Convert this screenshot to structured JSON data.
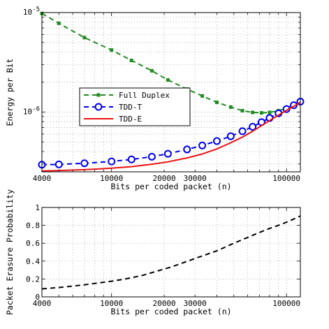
{
  "chart_data": [
    {
      "type": "line",
      "xscale": "log",
      "yscale": "log",
      "xlim": [
        4000,
        120000
      ],
      "ylim": [
        2.5e-07,
        1e-05
      ],
      "xlabel": "Bits per coded packet (n)",
      "ylabel": "Energy per Bit",
      "xtick_labels": [
        "4000",
        "10000",
        "20000",
        "30000",
        "100000"
      ],
      "xtick_values": [
        4000,
        10000,
        20000,
        30000,
        100000
      ],
      "ytick_labels": [
        {
          "value": 1e-05,
          "base": "10",
          "exp": "-5"
        },
        {
          "value": 1e-06,
          "base": "10",
          "exp": "-6"
        }
      ],
      "grid": true,
      "legend_position": "center-left",
      "series": [
        {
          "name": "Full Duplex",
          "color": "#228B22",
          "style": "dashed",
          "marker": "square",
          "x": [
            4000,
            5000,
            7000,
            10000,
            13000,
            17000,
            21000,
            27000,
            33000,
            40000,
            48000,
            56000,
            64000,
            72000,
            80000,
            90000,
            100000,
            110000,
            120000
          ],
          "y": [
            9.8e-06,
            7.8e-06,
            5.6e-06,
            4.2e-06,
            3.3e-06,
            2.6e-06,
            2.1e-06,
            1.7e-06,
            1.45e-06,
            1.25e-06,
            1.12e-06,
            1.03e-06,
            9.9e-07,
            9.8e-07,
            9.9e-07,
            1.03e-06,
            1.09e-06,
            1.17e-06,
            1.28e-06
          ]
        },
        {
          "name": "TDD-T",
          "color": "#0000EE",
          "style": "dashed",
          "marker": "circle",
          "x": [
            4000,
            5000,
            7000,
            10000,
            13000,
            17000,
            21000,
            27000,
            33000,
            40000,
            48000,
            56000,
            64000,
            72000,
            80000,
            90000,
            100000,
            110000,
            120000
          ],
          "y": [
            2.95e-07,
            2.97e-07,
            3.05e-07,
            3.18e-07,
            3.33e-07,
            3.55e-07,
            3.8e-07,
            4.2e-07,
            4.6e-07,
            5.1e-07,
            5.7e-07,
            6.4e-07,
            7.1e-07,
            7.9e-07,
            8.7e-07,
            9.7e-07,
            1.07e-06,
            1.17e-06,
            1.27e-06
          ]
        },
        {
          "name": "TDD-E",
          "color": "#EE1111",
          "style": "solid",
          "marker": "none",
          "x": [
            4000,
            5000,
            7000,
            10000,
            13000,
            17000,
            21000,
            27000,
            33000,
            40000,
            48000,
            56000,
            64000,
            72000,
            80000,
            90000,
            100000,
            110000,
            120000
          ],
          "y": [
            2.55e-07,
            2.58e-07,
            2.63e-07,
            2.72e-07,
            2.82e-07,
            2.98e-07,
            3.15e-07,
            3.45e-07,
            3.78e-07,
            4.25e-07,
            4.9e-07,
            5.6e-07,
            6.4e-07,
            7.3e-07,
            8.2e-07,
            9.3e-07,
            1.04e-06,
            1.14e-06,
            1.25e-06
          ]
        }
      ]
    },
    {
      "type": "line",
      "xscale": "log",
      "yscale": "linear",
      "xlim": [
        4000,
        120000
      ],
      "ylim": [
        0,
        1
      ],
      "xlabel": "Bits per coded packet (n)",
      "ylabel": "Packet Erasure Probability",
      "xtick_labels": [
        "4000",
        "10000",
        "20000",
        "30000",
        "100000"
      ],
      "xtick_values": [
        4000,
        10000,
        20000,
        30000,
        100000
      ],
      "ytick_labels": [
        "0",
        "0.2",
        "0.4",
        "0.6",
        "0.8",
        "1"
      ],
      "ytick_values": [
        0,
        0.2,
        0.4,
        0.6,
        0.8,
        1
      ],
      "grid": true,
      "series": [
        {
          "color": "#000000",
          "style": "dashed",
          "x": [
            4000,
            5000,
            6000,
            7000,
            8000,
            10000,
            12000,
            15000,
            18000,
            22000,
            26000,
            30000,
            35000,
            40000,
            50000,
            60000,
            70000,
            80000,
            90000,
            100000,
            110000,
            120000
          ],
          "y": [
            0.09,
            0.105,
            0.12,
            0.135,
            0.15,
            0.175,
            0.2,
            0.24,
            0.285,
            0.335,
            0.385,
            0.43,
            0.475,
            0.515,
            0.6,
            0.665,
            0.72,
            0.765,
            0.8,
            0.835,
            0.87,
            0.905
          ]
        }
      ]
    }
  ]
}
